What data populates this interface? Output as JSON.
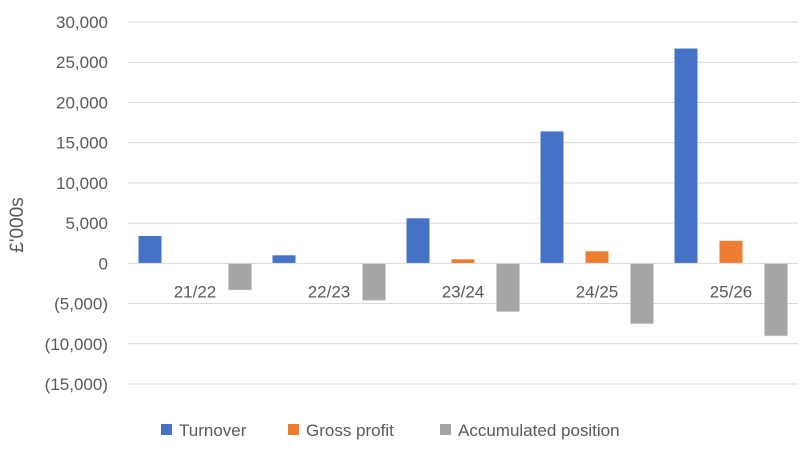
{
  "chart_data": {
    "type": "bar",
    "ylabel": "£'000s",
    "ylim": [
      -15000,
      30000
    ],
    "yticks": [
      30000,
      25000,
      20000,
      15000,
      10000,
      5000,
      0,
      -5000,
      -10000,
      -15000
    ],
    "ytick_labels": [
      "30,000",
      "25,000",
      "20,000",
      "15,000",
      "10,000",
      "5,000",
      "0",
      "(5,000)",
      "(10,000)",
      "(15,000)"
    ],
    "categories": [
      "21/22",
      "22/23",
      "23/24",
      "24/25",
      "25/26"
    ],
    "series": [
      {
        "name": "Turnover",
        "color": "#4472C4",
        "values": [
          3400,
          1000,
          5600,
          16400,
          26700
        ]
      },
      {
        "name": "Gross profit",
        "color": "#ED7D31",
        "values": [
          0,
          0,
          500,
          1500,
          2800
        ]
      },
      {
        "name": "Accumulated position",
        "color": "#A5A5A5",
        "values": [
          -3300,
          -4600,
          -6000,
          -7500,
          -9000
        ]
      }
    ],
    "grid": true,
    "legend_position": "bottom"
  }
}
